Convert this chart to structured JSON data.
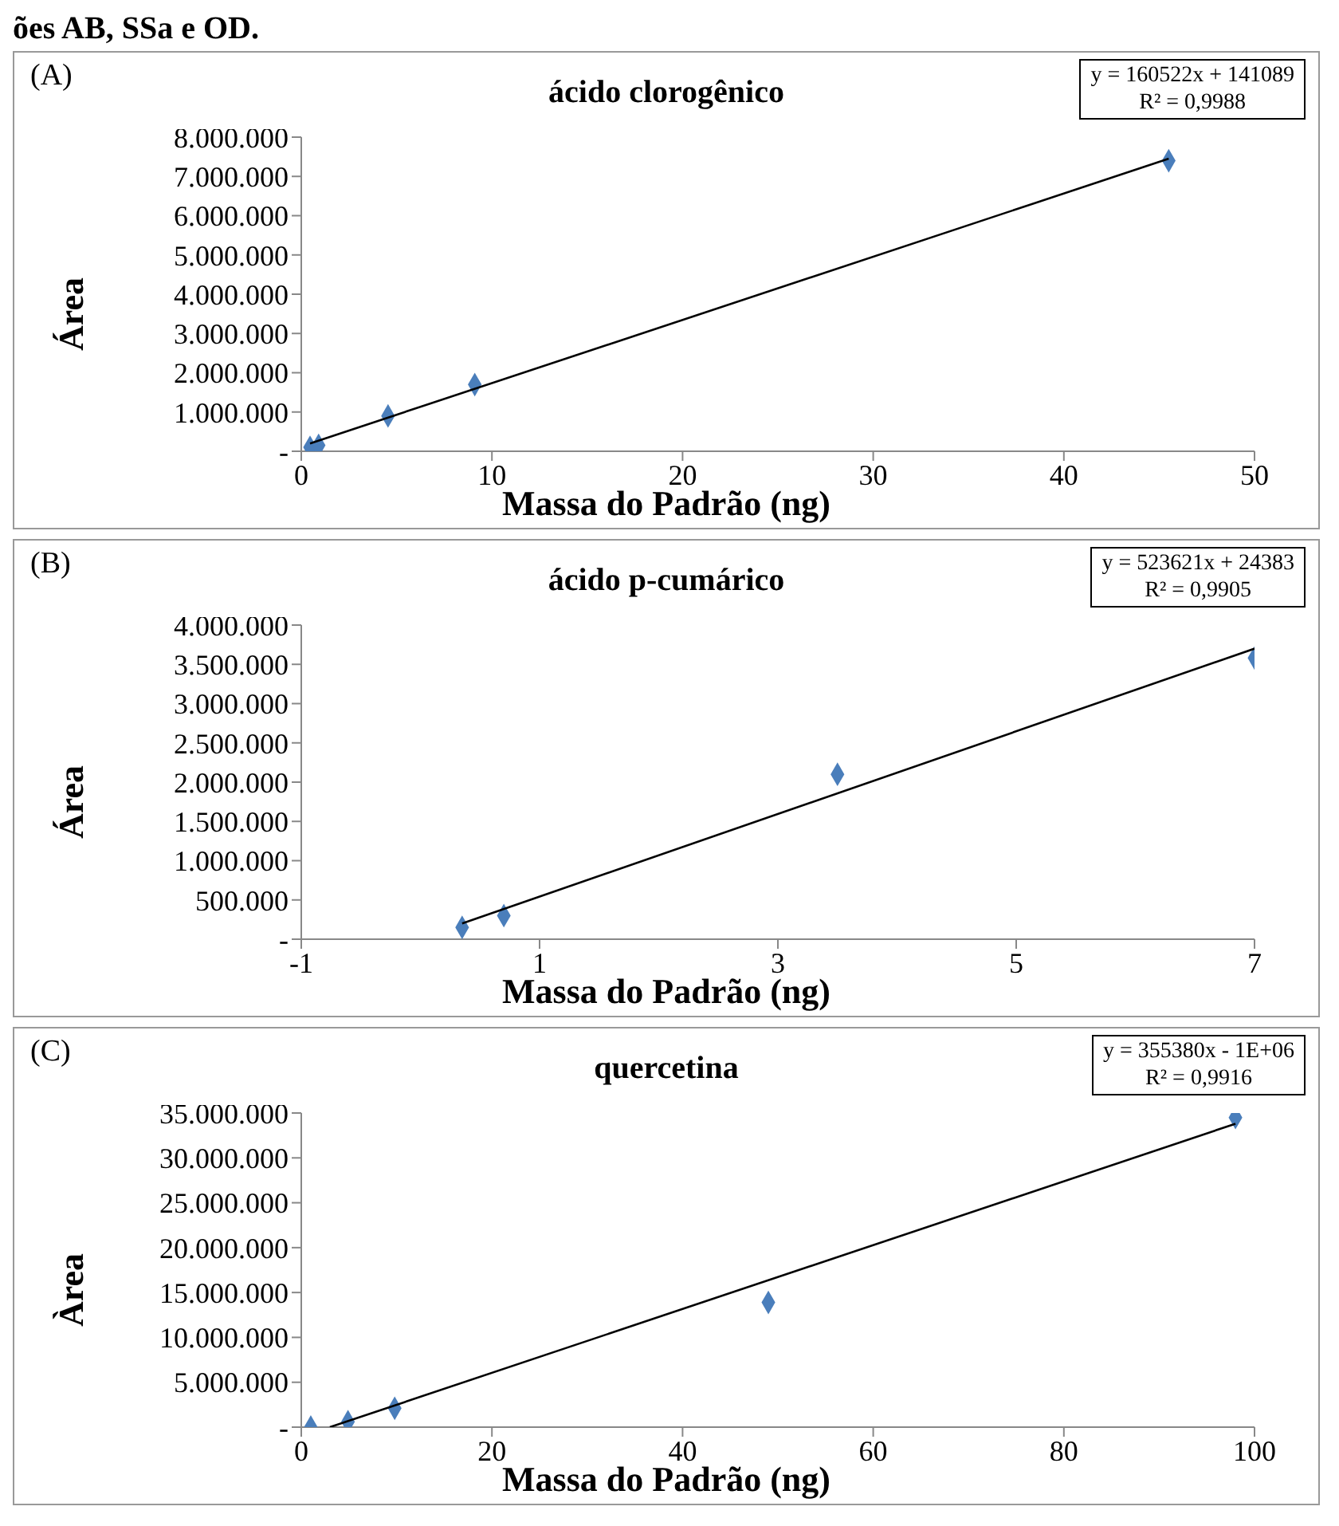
{
  "chart_data": [
    {
      "type": "scatter",
      "title": "ácido clorogênico",
      "xlabel": "Massa  do Padrão (ng)",
      "ylabel": "Área",
      "annotations": [
        "ões AB, SSa e OD.",
        "(A)",
        "y = 160522x + 141089",
        "R² = 0,9988"
      ],
      "grid": false,
      "legend": false,
      "xlim": [
        0,
        50
      ],
      "xticks": [
        0,
        10,
        20,
        30,
        40,
        50
      ],
      "ylim": [
        0,
        8000000
      ],
      "yticks": [
        {
          "value": 0,
          "label": "-"
        },
        {
          "value": 1000000,
          "label": "1.000.000"
        },
        {
          "value": 2000000,
          "label": "2.000.000"
        },
        {
          "value": 3000000,
          "label": "3.000.000"
        },
        {
          "value": 4000000,
          "label": "4.000.000"
        },
        {
          "value": 5000000,
          "label": "5.000.000"
        },
        {
          "value": 6000000,
          "label": "6.000.000"
        },
        {
          "value": 7000000,
          "label": "7.000.000"
        },
        {
          "value": 8000000,
          "label": "8.000.000"
        }
      ],
      "series": [
        {
          "marker": "diamond",
          "color": "#4a7ebb",
          "x": [
            0.46,
            0.91,
            4.55,
            9.1,
            45.5
          ],
          "values": [
            100000,
            150000,
            900000,
            1700000,
            7400000
          ]
        },
        {
          "type": "line",
          "marker": "none",
          "color": "#000000",
          "x": [
            0.46,
            45.5
          ],
          "values": [
            200000,
            7450000
          ]
        }
      ]
    },
    {
      "type": "scatter",
      "title": "ácido p-cumárico",
      "xlabel": "Massa do Padrão (ng)",
      "ylabel": "Área",
      "annotations": [
        "(B)",
        "y = 523621x + 24383",
        "R² = 0,9905"
      ],
      "grid": false,
      "legend": false,
      "xlim": [
        -1,
        7
      ],
      "xticks": [
        -1,
        1,
        3,
        5,
        7
      ],
      "ylim": [
        0,
        4000000
      ],
      "yticks": [
        {
          "value": 0,
          "label": "-"
        },
        {
          "value": 500000,
          "label": "500.000"
        },
        {
          "value": 1000000,
          "label": "1.000.000"
        },
        {
          "value": 1500000,
          "label": "1.500.000"
        },
        {
          "value": 2000000,
          "label": "2.000.000"
        },
        {
          "value": 2500000,
          "label": "2.500.000"
        },
        {
          "value": 3000000,
          "label": "3.000.000"
        },
        {
          "value": 3500000,
          "label": "3.500.000"
        },
        {
          "value": 4000000,
          "label": "4.000.000"
        }
      ],
      "series": [
        {
          "marker": "diamond",
          "color": "#4a7ebb",
          "x": [
            0.35,
            0.7,
            3.5,
            7
          ],
          "values": [
            150000,
            300000,
            2100000,
            3580000
          ]
        },
        {
          "type": "line",
          "marker": "none",
          "color": "#000000",
          "x": [
            0.35,
            7
          ],
          "values": [
            200000,
            3700000
          ]
        }
      ]
    },
    {
      "type": "scatter",
      "title": "quercetina",
      "xlabel": "Massa do Padrão (ng)",
      "ylabel": "Àrea",
      "annotations": [
        "(C)",
        "y = 355380x - 1E+06",
        "R² = 0,9916"
      ],
      "grid": false,
      "legend": false,
      "xlim": [
        0,
        100
      ],
      "xticks": [
        0,
        20,
        40,
        60,
        80,
        100
      ],
      "ylim": [
        0,
        35000000
      ],
      "yticks": [
        {
          "value": 0,
          "label": "-"
        },
        {
          "value": 5000000,
          "label": "5.000.000"
        },
        {
          "value": 10000000,
          "label": "10.000.000"
        },
        {
          "value": 15000000,
          "label": "15.000.000"
        },
        {
          "value": 20000000,
          "label": "20.000.000"
        },
        {
          "value": 25000000,
          "label": "25.000.000"
        },
        {
          "value": 30000000,
          "label": "30.000.000"
        },
        {
          "value": 35000000,
          "label": "35.000.000"
        }
      ],
      "series": [
        {
          "marker": "diamond",
          "color": "#4a7ebb",
          "x": [
            1,
            4.9,
            9.8,
            49,
            98
          ],
          "values": [
            0,
            600000,
            2100000,
            13900000,
            34500000
          ]
        },
        {
          "type": "line",
          "marker": "none",
          "color": "#000000",
          "x": [
            3,
            98
          ],
          "values": [
            0,
            33800000
          ]
        }
      ]
    }
  ]
}
